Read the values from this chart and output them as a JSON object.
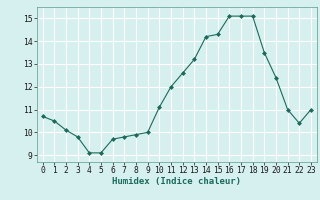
{
  "x": [
    0,
    1,
    2,
    3,
    4,
    5,
    6,
    7,
    8,
    9,
    10,
    11,
    12,
    13,
    14,
    15,
    16,
    17,
    18,
    19,
    20,
    21,
    22,
    23
  ],
  "y": [
    10.7,
    10.5,
    10.1,
    9.8,
    9.1,
    9.1,
    9.7,
    9.8,
    9.9,
    10.0,
    11.1,
    12.0,
    12.6,
    13.2,
    14.2,
    14.3,
    15.1,
    15.1,
    15.1,
    13.5,
    12.4,
    11.0,
    10.4,
    11.0
  ],
  "line_color": "#1a6b5a",
  "marker": "D",
  "marker_size": 2.0,
  "bg_color": "#d6f0f0",
  "grid_color": "#ffffff",
  "xlabel": "Humidex (Indice chaleur)",
  "xlim": [
    -0.5,
    23.5
  ],
  "ylim": [
    8.7,
    15.5
  ],
  "yticks": [
    9,
    10,
    11,
    12,
    13,
    14,
    15
  ],
  "xticks": [
    0,
    1,
    2,
    3,
    4,
    5,
    6,
    7,
    8,
    9,
    10,
    11,
    12,
    13,
    14,
    15,
    16,
    17,
    18,
    19,
    20,
    21,
    22,
    23
  ],
  "xlabel_fontsize": 6.5,
  "tick_fontsize": 5.8
}
